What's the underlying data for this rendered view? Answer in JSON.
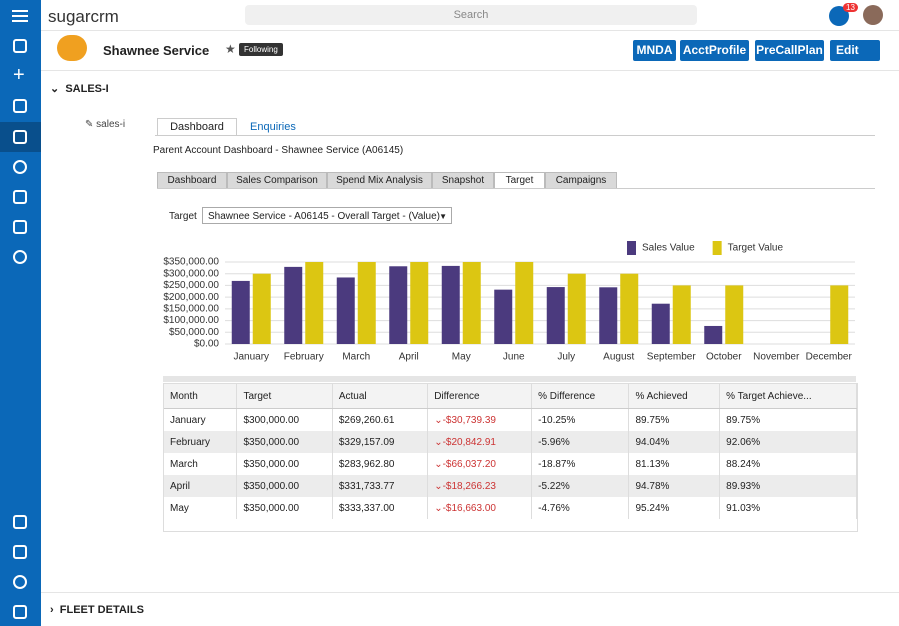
{
  "header": {
    "brand": "sugarcrm",
    "search": "Search",
    "notifications": "13",
    "account": "Shawnee Service",
    "following": "Following",
    "buttons": [
      "MNDA",
      "AcctProfile",
      "PreCallPlan",
      "Edit"
    ]
  },
  "section": "SALES-I",
  "edit_link": "sales-i",
  "inner_tabs": [
    "Dashboard",
    "Enquiries"
  ],
  "dashboard_title": "Parent Account Dashboard - Shawnee Service (A06145)",
  "tabs": [
    "Dashboard",
    "Sales Comparison",
    "Spend Mix Analysis",
    "Snapshot",
    "Target",
    "Campaigns"
  ],
  "target_label": "Target",
  "target_select": "Shawnee Service - A06145 - Overall Target - (Value)",
  "chart_data": {
    "type": "bar",
    "categories": [
      "January",
      "February",
      "March",
      "April",
      "May",
      "June",
      "July",
      "August",
      "September",
      "October",
      "November",
      "December"
    ],
    "series": [
      {
        "name": "Sales Value",
        "color": "#4b3a7e",
        "values": [
          269260.61,
          329157.09,
          283962.8,
          331733.77,
          333337.0,
          232000,
          243000,
          242000,
          172000,
          77000,
          null,
          null
        ]
      },
      {
        "name": "Target Value",
        "color": "#dcc612",
        "values": [
          300000,
          350000,
          350000,
          350000,
          350000,
          350000,
          300000,
          300000,
          250000,
          250000,
          null,
          250000
        ]
      }
    ],
    "ylim": [
      0,
      350000
    ],
    "yticks": [
      {
        "value": 0,
        "label": "$0.00"
      },
      {
        "value": 50000,
        "label": "$50,000.00"
      },
      {
        "value": 100000,
        "label": "$100,000.00"
      },
      {
        "value": 150000,
        "label": "$150,000.00"
      },
      {
        "value": 200000,
        "label": "$200,000.00"
      },
      {
        "value": 250000,
        "label": "$250,000.00"
      },
      {
        "value": 300000,
        "label": "$300,000.00"
      },
      {
        "value": 350000,
        "label": "$350,000.00"
      }
    ],
    "grid": true,
    "legend": "top-right"
  },
  "table": {
    "columns": [
      "Month",
      "Target",
      "Actual",
      "Difference",
      "% Difference",
      "% Achieved",
      "% Target Achieve..."
    ],
    "rows": [
      [
        "January",
        "$300,000.00",
        "$269,260.61",
        "-$30,739.39",
        "-10.25%",
        "89.75%",
        "89.75%"
      ],
      [
        "February",
        "$350,000.00",
        "$329,157.09",
        "-$20,842.91",
        "-5.96%",
        "94.04%",
        "92.06%"
      ],
      [
        "March",
        "$350,000.00",
        "$283,962.80",
        "-$66,037.20",
        "-18.87%",
        "81.13%",
        "88.24%"
      ],
      [
        "April",
        "$350,000.00",
        "$331,733.77",
        "-$18,266.23",
        "-5.22%",
        "94.78%",
        "89.93%"
      ],
      [
        "May",
        "$350,000.00",
        "$333,337.00",
        "-$16,663.00",
        "-4.76%",
        "95.24%",
        "91.03%"
      ]
    ]
  },
  "footer_section": "FLEET DETAILS"
}
